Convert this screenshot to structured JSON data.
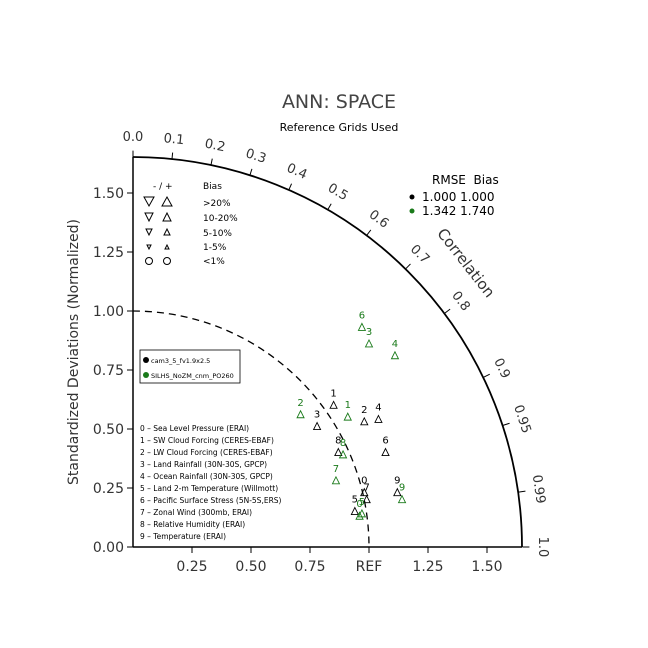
{
  "chart_data": {
    "type": "scatter",
    "title": "ANN: SPACE",
    "subtitle": "Reference Grids Used",
    "ylabel": "Standardized Deviations (Normalized)",
    "correlation_label": "Correlation",
    "xlim": [
      0,
      1.65
    ],
    "ylim": [
      0,
      1.65
    ],
    "x_ticks": [
      "0.25",
      "0.50",
      "0.75",
      "REF",
      "1.25",
      "1.50"
    ],
    "x_tick_values": [
      0.25,
      0.5,
      0.75,
      1.0,
      1.25,
      1.5
    ],
    "y_ticks": [
      "0.00",
      "0.25",
      "0.50",
      "0.75",
      "1.00",
      "1.25",
      "1.50"
    ],
    "y_tick_values": [
      0,
      0.25,
      0.5,
      0.75,
      1.0,
      1.25,
      1.5
    ],
    "correlation_ticks": [
      "0.0",
      "0.1",
      "0.2",
      "0.3",
      "0.4",
      "0.5",
      "0.6",
      "0.7",
      "0.8",
      "0.9",
      "0.95",
      "0.99",
      "1.0"
    ],
    "correlation_tick_values": [
      0.0,
      0.1,
      0.2,
      0.3,
      0.4,
      0.5,
      0.6,
      0.7,
      0.8,
      0.9,
      0.95,
      0.99,
      1.0
    ],
    "bias_legend": {
      "header": [
        "- / +",
        "Bias"
      ],
      "rows": [
        ">20%",
        "10-20%",
        "5-10%",
        "1-5%",
        "<1%"
      ]
    },
    "rmse_table": {
      "header": "RMSE  Bias",
      "rows": [
        "1.000 1.000",
        "1.342 1.740"
      ],
      "colors": [
        "#000000",
        "#1a7a1a"
      ]
    },
    "series": [
      {
        "name": "cam3_5_fv1.9x2.5",
        "color": "#000000",
        "points": [
          {
            "label": "0",
            "x": 0.98,
            "y": 0.26
          },
          {
            "label": "1",
            "x": 0.85,
            "y": 0.63
          },
          {
            "label": "2",
            "x": 0.98,
            "y": 0.56
          },
          {
            "label": "3",
            "x": 0.78,
            "y": 0.54
          },
          {
            "label": "4",
            "x": 1.04,
            "y": 0.57
          },
          {
            "label": "5",
            "x": 0.94,
            "y": 0.18
          },
          {
            "label": "6",
            "x": 1.07,
            "y": 0.43
          },
          {
            "label": "7",
            "x": 0.99,
            "y": 0.23
          },
          {
            "label": "8",
            "x": 0.87,
            "y": 0.43
          },
          {
            "label": "9",
            "x": 1.12,
            "y": 0.26
          }
        ]
      },
      {
        "name": "SILHS_NoZM_cnm_PO260",
        "color": "#1a7a1a",
        "points": [
          {
            "label": "1",
            "x": 0.91,
            "y": 0.58
          },
          {
            "label": "2",
            "x": 0.71,
            "y": 0.59
          },
          {
            "label": "3",
            "x": 1.0,
            "y": 0.89
          },
          {
            "label": "4",
            "x": 1.11,
            "y": 0.84
          },
          {
            "label": "5",
            "x": 0.97,
            "y": 0.17
          },
          {
            "label": "6",
            "x": 0.97,
            "y": 0.96
          },
          {
            "label": "7",
            "x": 0.86,
            "y": 0.31
          },
          {
            "label": "8",
            "x": 0.89,
            "y": 0.42
          },
          {
            "label": "9",
            "x": 1.14,
            "y": 0.23
          },
          {
            "label": "0",
            "x": 0.96,
            "y": 0.16
          }
        ]
      }
    ],
    "legend_location": "center-left"
  }
}
